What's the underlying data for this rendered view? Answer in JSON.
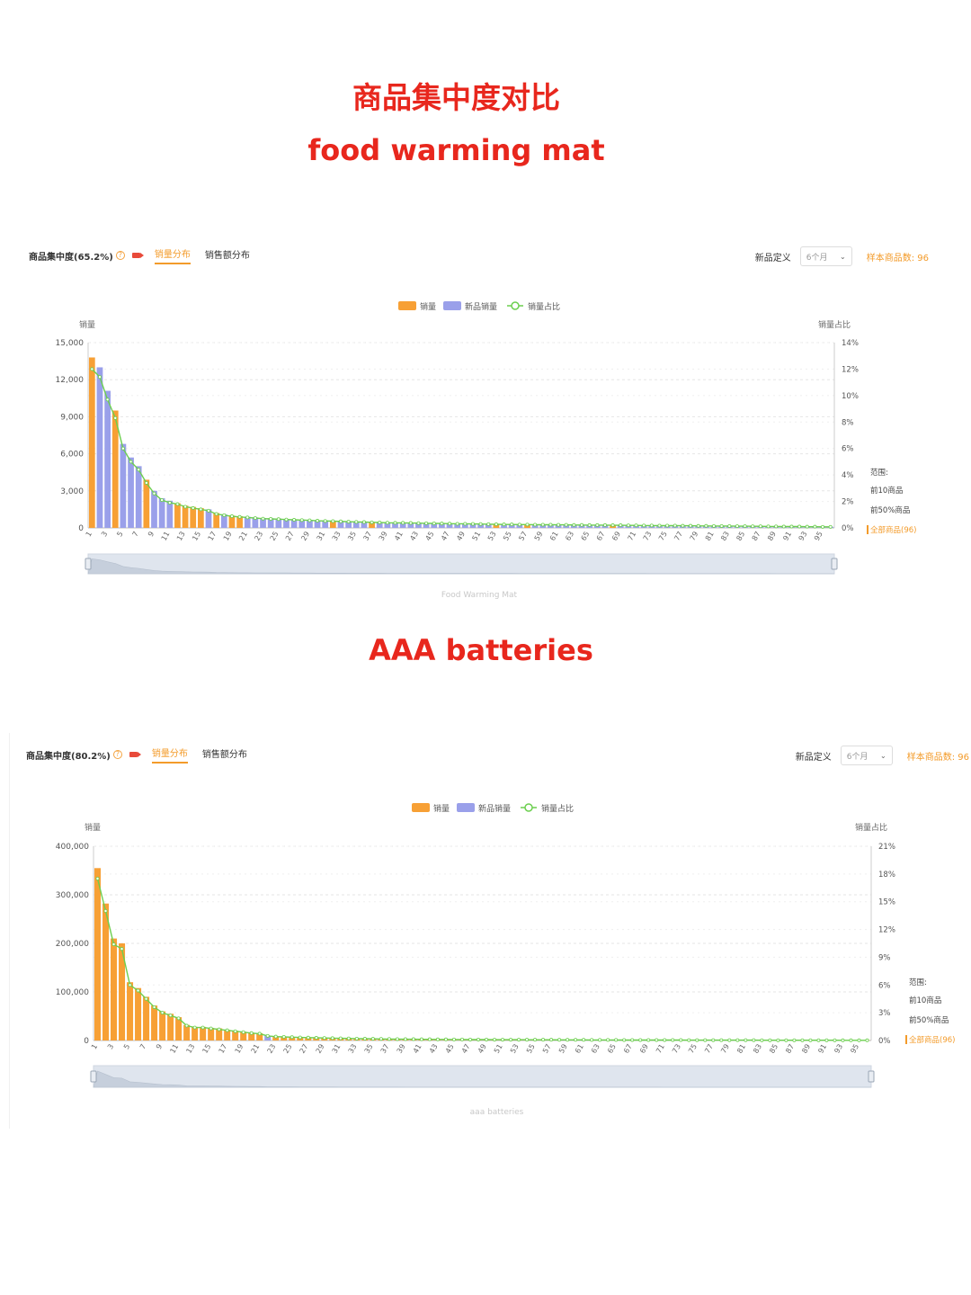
{
  "header": {
    "title": "商品集中度对比",
    "subtitle1": "food warming mat",
    "subtitle2": "AAA batteries"
  },
  "panels": [
    {
      "concentration_label": "商品集中度(65.2%)",
      "tab_sales_volume": "销量分布",
      "tab_sales_amount": "销售额分布",
      "new_def_label": "新品定义",
      "period_value": "6个月",
      "sample_count": "样本商品数: 96",
      "caption": "Food Warming Mat"
    },
    {
      "concentration_label": "商品集中度(80.2%)",
      "tab_sales_volume": "销量分布",
      "tab_sales_amount": "销售额分布",
      "new_def_label": "新品定义",
      "period_value": "6个月",
      "sample_count": "样本商品数: 96",
      "caption": "aaa batteries"
    }
  ],
  "colors": {
    "sales": "#f7a035",
    "new_sales": "#9aa0ea",
    "share_line": "#6ccf4f",
    "accent": "#f39b2a",
    "title": "#e8271d"
  },
  "chart_data": [
    {
      "type": "bar",
      "legend": [
        "销量",
        "新品销量",
        "销量占比"
      ],
      "ylabel_left": "销量",
      "ylabel_right": "销量占比",
      "ylim_left": [
        0,
        15000
      ],
      "yticks_left": [
        "0",
        "3,000",
        "6,000",
        "9,000",
        "12,000",
        "15,000"
      ],
      "ylim_right": [
        0,
        14
      ],
      "yticks_right": [
        "0%",
        "2%",
        "4%",
        "6%",
        "8%",
        "10%",
        "12%",
        "14%"
      ],
      "range_title": "范围:",
      "range_options": [
        "前10商品",
        "前50%商品",
        "全部商品(96)"
      ],
      "range_selected": 2,
      "x": [
        1,
        2,
        3,
        4,
        5,
        6,
        7,
        8,
        9,
        10,
        11,
        12,
        13,
        14,
        15,
        16,
        17,
        18,
        19,
        20,
        21,
        22,
        23,
        24,
        25,
        26,
        27,
        28,
        29,
        30,
        31,
        32,
        33,
        34,
        35,
        36,
        37,
        38,
        39,
        40,
        41,
        42,
        43,
        44,
        45,
        46,
        47,
        48,
        49,
        50,
        51,
        52,
        53,
        54,
        55,
        56,
        57,
        58,
        59,
        60,
        61,
        62,
        63,
        64,
        65,
        66,
        67,
        68,
        69,
        70,
        71,
        72,
        73,
        74,
        75,
        76,
        77,
        78,
        79,
        80,
        81,
        82,
        83,
        84,
        85,
        86,
        87,
        88,
        89,
        90,
        91,
        92,
        93,
        94,
        95,
        96
      ],
      "values": [
        13800,
        13000,
        11100,
        9500,
        6800,
        5700,
        5000,
        3900,
        3000,
        2400,
        2200,
        2000,
        1800,
        1700,
        1600,
        1500,
        1200,
        1100,
        1000,
        950,
        900,
        850,
        800,
        780,
        760,
        720,
        700,
        680,
        650,
        620,
        600,
        580,
        560,
        540,
        520,
        500,
        480,
        470,
        450,
        440,
        430,
        420,
        410,
        400,
        390,
        380,
        370,
        360,
        350,
        340,
        330,
        320,
        310,
        300,
        295,
        290,
        285,
        280,
        275,
        270,
        265,
        260,
        255,
        250,
        245,
        240,
        235,
        230,
        225,
        220,
        215,
        210,
        205,
        200,
        195,
        190,
        185,
        180,
        175,
        170,
        165,
        160,
        155,
        150,
        145,
        140,
        135,
        130,
        125,
        120,
        115,
        110,
        105,
        100,
        95,
        90
      ],
      "is_new": [
        false,
        true,
        true,
        false,
        true,
        true,
        true,
        false,
        true,
        true,
        true,
        false,
        false,
        false,
        false,
        true,
        false,
        true,
        false,
        false,
        true,
        true,
        true,
        true,
        true,
        true,
        true,
        true,
        true,
        true,
        true,
        false,
        true,
        true,
        true,
        true,
        false,
        true,
        true,
        true,
        true,
        true,
        true,
        true,
        true,
        true,
        true,
        true,
        true,
        true,
        true,
        true,
        false,
        true,
        true,
        true,
        false,
        true,
        true,
        true,
        true,
        true,
        true,
        true,
        true,
        true,
        true,
        false,
        true,
        true,
        true,
        true,
        true,
        true,
        true,
        true,
        true,
        true,
        true,
        true,
        true,
        true,
        true,
        true,
        true,
        true,
        true,
        true,
        true,
        true,
        true,
        true,
        true,
        true,
        true,
        true
      ],
      "share_pct": [
        12.0,
        11.4,
        9.7,
        8.3,
        6.0,
        5.0,
        4.4,
        3.4,
        2.6,
        2.1,
        1.9,
        1.8,
        1.6,
        1.5,
        1.4,
        1.3,
        1.05,
        0.96,
        0.88,
        0.83,
        0.79,
        0.74,
        0.7,
        0.68,
        0.66,
        0.63,
        0.61,
        0.59,
        0.57,
        0.54,
        0.52,
        0.51,
        0.49,
        0.47,
        0.45,
        0.44,
        0.42,
        0.41,
        0.39,
        0.38,
        0.38,
        0.37,
        0.36,
        0.35,
        0.34,
        0.33,
        0.32,
        0.31,
        0.31,
        0.3,
        0.29,
        0.28,
        0.27,
        0.26,
        0.26,
        0.25,
        0.25,
        0.24,
        0.24,
        0.24,
        0.23,
        0.23,
        0.22,
        0.22,
        0.21,
        0.21,
        0.21,
        0.2,
        0.2,
        0.19,
        0.19,
        0.18,
        0.18,
        0.17,
        0.17,
        0.17,
        0.16,
        0.16,
        0.15,
        0.15,
        0.14,
        0.14,
        0.14,
        0.13,
        0.13,
        0.12,
        0.12,
        0.11,
        0.11,
        0.1,
        0.1,
        0.1,
        0.09,
        0.09,
        0.08,
        0.08
      ]
    },
    {
      "type": "bar",
      "legend": [
        "销量",
        "新品销量",
        "销量占比"
      ],
      "ylabel_left": "销量",
      "ylabel_right": "销量占比",
      "ylim_left": [
        0,
        400000
      ],
      "yticks_left": [
        "0",
        "100,000",
        "200,000",
        "300,000",
        "400,000"
      ],
      "ylim_right": [
        0,
        21
      ],
      "yticks_right": [
        "0%",
        "3%",
        "6%",
        "9%",
        "12%",
        "15%",
        "18%",
        "21%"
      ],
      "range_title": "范围:",
      "range_options": [
        "前10商品",
        "前50%商品",
        "全部商品(96)"
      ],
      "range_selected": 2,
      "x": [
        1,
        2,
        3,
        4,
        5,
        6,
        7,
        8,
        9,
        10,
        11,
        12,
        13,
        14,
        15,
        16,
        17,
        18,
        19,
        20,
        21,
        22,
        23,
        24,
        25,
        26,
        27,
        28,
        29,
        30,
        31,
        32,
        33,
        34,
        35,
        36,
        37,
        38,
        39,
        40,
        41,
        42,
        43,
        44,
        45,
        46,
        47,
        48,
        49,
        50,
        51,
        52,
        53,
        54,
        55,
        56,
        57,
        58,
        59,
        60,
        61,
        62,
        63,
        64,
        65,
        66,
        67,
        68,
        69,
        70,
        71,
        72,
        73,
        74,
        75,
        76,
        77,
        78,
        79,
        80,
        81,
        82,
        83,
        84,
        85,
        86,
        87,
        88,
        89,
        90,
        91,
        92,
        93,
        94,
        95,
        96
      ],
      "values": [
        355000,
        282000,
        210000,
        200000,
        120000,
        108000,
        90000,
        72000,
        60000,
        55000,
        48000,
        32000,
        28000,
        28000,
        26000,
        25000,
        22000,
        20000,
        18000,
        16000,
        15000,
        10000,
        8500,
        7800,
        7200,
        6700,
        6200,
        5800,
        5400,
        5000,
        4700,
        4400,
        4100,
        3900,
        3700,
        3500,
        3300,
        3100,
        2900,
        2800,
        2700,
        2600,
        2500,
        2400,
        2300,
        2200,
        2100,
        2000,
        1950,
        1900,
        1850,
        1800,
        1750,
        1700,
        1650,
        1600,
        1550,
        1500,
        1450,
        1400,
        1350,
        1300,
        1250,
        1200,
        1150,
        1100,
        1080,
        1050,
        1020,
        1000,
        980,
        950,
        920,
        900,
        880,
        850,
        820,
        800,
        780,
        760,
        740,
        720,
        700,
        680,
        660,
        640,
        620,
        600,
        580,
        560,
        540,
        520,
        500,
        480,
        460,
        440
      ],
      "is_new": [
        false,
        false,
        false,
        false,
        false,
        false,
        false,
        false,
        false,
        false,
        false,
        false,
        false,
        false,
        false,
        false,
        false,
        false,
        false,
        false,
        false,
        true,
        false,
        false,
        false,
        false,
        false,
        false,
        false,
        false,
        false,
        false,
        false,
        false,
        false,
        false,
        false,
        false,
        false,
        false,
        false,
        false,
        false,
        false,
        false,
        false,
        false,
        false,
        false,
        false,
        false,
        false,
        false,
        false,
        false,
        false,
        false,
        false,
        false,
        false,
        false,
        false,
        false,
        false,
        false,
        false,
        false,
        false,
        false,
        false,
        false,
        false,
        false,
        false,
        false,
        false,
        false,
        false,
        false,
        false,
        false,
        false,
        false,
        false,
        false,
        false,
        false,
        false,
        false,
        false,
        false,
        false,
        false,
        false,
        false,
        false
      ],
      "share_pct": [
        17.5,
        14.0,
        10.4,
        9.9,
        6.0,
        5.4,
        4.5,
        3.6,
        3.0,
        2.7,
        2.4,
        1.6,
        1.4,
        1.4,
        1.3,
        1.2,
        1.1,
        1.0,
        0.9,
        0.8,
        0.74,
        0.5,
        0.42,
        0.39,
        0.36,
        0.33,
        0.31,
        0.29,
        0.27,
        0.25,
        0.23,
        0.22,
        0.2,
        0.19,
        0.18,
        0.17,
        0.16,
        0.15,
        0.14,
        0.14,
        0.13,
        0.13,
        0.12,
        0.12,
        0.11,
        0.11,
        0.1,
        0.1,
        0.1,
        0.09,
        0.09,
        0.09,
        0.09,
        0.08,
        0.08,
        0.08,
        0.08,
        0.07,
        0.07,
        0.07,
        0.07,
        0.06,
        0.06,
        0.06,
        0.06,
        0.05,
        0.05,
        0.05,
        0.05,
        0.05,
        0.05,
        0.05,
        0.05,
        0.04,
        0.04,
        0.04,
        0.04,
        0.04,
        0.04,
        0.04,
        0.04,
        0.04,
        0.03,
        0.03,
        0.03,
        0.03,
        0.03,
        0.03,
        0.03,
        0.03,
        0.03,
        0.03,
        0.02,
        0.02,
        0.02,
        0.02
      ]
    }
  ]
}
